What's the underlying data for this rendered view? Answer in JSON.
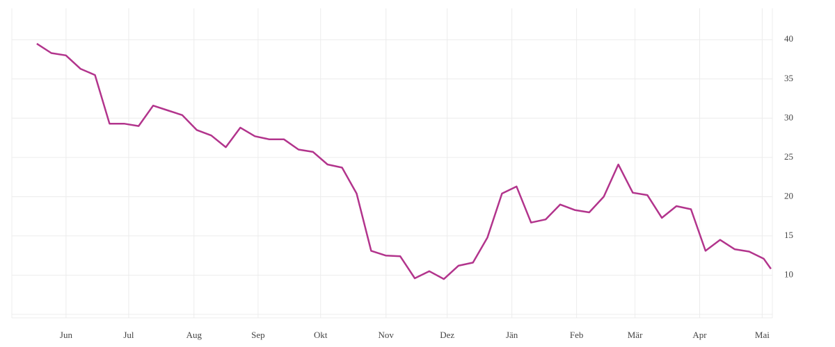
{
  "chart_data": {
    "type": "line",
    "x": [
      0,
      1,
      2,
      3,
      4,
      5,
      6,
      7,
      8,
      9,
      10,
      11,
      12,
      13,
      14,
      15,
      16,
      17,
      18,
      19,
      20,
      21,
      22,
      23,
      24,
      25,
      26,
      27,
      28,
      29,
      30,
      31,
      32,
      33,
      34,
      35,
      36,
      37,
      38,
      39,
      40,
      41,
      42,
      43,
      44,
      45,
      46,
      47,
      48,
      49,
      50,
      50.5
    ],
    "series": [
      {
        "color": "#b2348c",
        "values": [
          39.5,
          38.3,
          38.0,
          36.3,
          35.5,
          29.3,
          29.3,
          29.0,
          31.6,
          31.0,
          30.4,
          28.5,
          27.8,
          26.3,
          28.8,
          27.7,
          27.3,
          27.3,
          26.0,
          25.7,
          24.1,
          23.7,
          20.4,
          13.1,
          12.5,
          12.4,
          9.6,
          10.5,
          9.5,
          11.2,
          11.6,
          14.8,
          20.4,
          21.3,
          16.7,
          17.1,
          19.0,
          18.3,
          18.0,
          20.0,
          24.1,
          20.5,
          20.2,
          17.3,
          18.8,
          18.4,
          13.1,
          14.5,
          13.3,
          13.0,
          12.1,
          10.8
        ]
      }
    ],
    "xlim": [
      -1.72,
      50.6
    ],
    "xticks": [
      {
        "value": 2.01,
        "label": "Jun"
      },
      {
        "value": 6.32,
        "label": "Jul"
      },
      {
        "value": 10.81,
        "label": "Aug"
      },
      {
        "value": 15.22,
        "label": "Sep"
      },
      {
        "value": 19.52,
        "label": "Okt"
      },
      {
        "value": 24.02,
        "label": "Nov"
      },
      {
        "value": 28.23,
        "label": "Dez"
      },
      {
        "value": 32.68,
        "label": "Jän"
      },
      {
        "value": 37.13,
        "label": "Feb"
      },
      {
        "value": 41.15,
        "label": "Mär"
      },
      {
        "value": 45.6,
        "label": "Apr"
      },
      {
        "value": 49.9,
        "label": "Mai"
      }
    ],
    "ylim": [
      5,
      44
    ],
    "yticks": [
      10,
      15,
      20,
      25,
      30,
      35,
      40
    ],
    "grid": true
  }
}
